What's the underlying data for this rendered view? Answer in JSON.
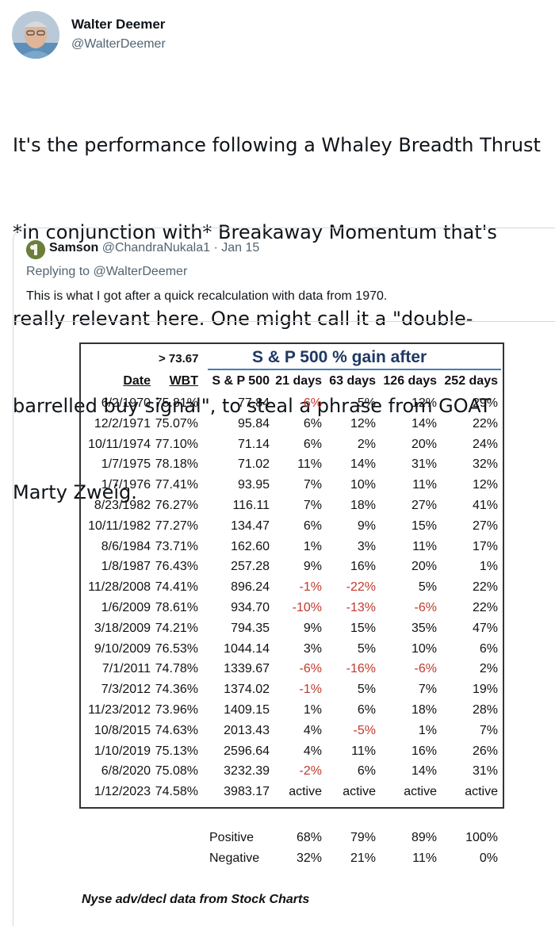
{
  "tweet": {
    "author_name": "Walter Deemer",
    "author_handle": "@WalterDeemer",
    "text_lines": [
      "It's the performance following a Whaley Breadth Thrust",
      "*in conjunction with* Breakaway Momentum that's",
      "really relevant here. One might call it a \"double-",
      "barrelled buy signal\", to steal a phrase from GOAT",
      "Marty Zweig."
    ]
  },
  "quote": {
    "author_name": "Samson",
    "author_handle": "@ChandraNukala1",
    "separator": "·",
    "date": "Jan 15",
    "replying_to": "Replying to @WalterDeemer",
    "text": "This is what I got after a quick recalculation with data from 1970."
  },
  "table": {
    "threshold": "> 73.67",
    "title": "S & P 500  % gain after",
    "headers": [
      "Date",
      "WBT",
      "S & P 500",
      "21 days",
      "63 days",
      "126 days",
      "252 days"
    ],
    "rows": [
      [
        "6/2/1970",
        "75.81%",
        "77.84",
        "-6%",
        "5%",
        "12%",
        "29%"
      ],
      [
        "12/2/1971",
        "75.07%",
        "95.84",
        "6%",
        "12%",
        "14%",
        "22%"
      ],
      [
        "10/11/1974",
        "77.10%",
        "71.14",
        "6%",
        "2%",
        "20%",
        "24%"
      ],
      [
        "1/7/1975",
        "78.18%",
        "71.02",
        "11%",
        "14%",
        "31%",
        "32%"
      ],
      [
        "1/7/1976",
        "77.41%",
        "93.95",
        "7%",
        "10%",
        "11%",
        "12%"
      ],
      [
        "8/23/1982",
        "76.27%",
        "116.11",
        "7%",
        "18%",
        "27%",
        "41%"
      ],
      [
        "10/11/1982",
        "77.27%",
        "134.47",
        "6%",
        "9%",
        "15%",
        "27%"
      ],
      [
        "8/6/1984",
        "73.71%",
        "162.60",
        "1%",
        "3%",
        "11%",
        "17%"
      ],
      [
        "1/8/1987",
        "76.43%",
        "257.28",
        "9%",
        "16%",
        "20%",
        "1%"
      ],
      [
        "11/28/2008",
        "74.41%",
        "896.24",
        "-1%",
        "-22%",
        "5%",
        "22%"
      ],
      [
        "1/6/2009",
        "78.61%",
        "934.70",
        "-10%",
        "-13%",
        "-6%",
        "22%"
      ],
      [
        "3/18/2009",
        "74.21%",
        "794.35",
        "9%",
        "15%",
        "35%",
        "47%"
      ],
      [
        "9/10/2009",
        "76.53%",
        "1044.14",
        "3%",
        "5%",
        "10%",
        "6%"
      ],
      [
        "7/1/2011",
        "74.78%",
        "1339.67",
        "-6%",
        "-16%",
        "-6%",
        "2%"
      ],
      [
        "7/3/2012",
        "74.36%",
        "1374.02",
        "-1%",
        "5%",
        "7%",
        "19%"
      ],
      [
        "11/23/2012",
        "73.96%",
        "1409.15",
        "1%",
        "6%",
        "18%",
        "28%"
      ],
      [
        "10/8/2015",
        "74.63%",
        "2013.43",
        "4%",
        "-5%",
        "1%",
        "7%"
      ],
      [
        "1/10/2019",
        "75.13%",
        "2596.64",
        "4%",
        "11%",
        "16%",
        "26%"
      ],
      [
        "6/8/2020",
        "75.08%",
        "3232.39",
        "-2%",
        "6%",
        "14%",
        "31%"
      ],
      [
        "1/12/2023",
        "74.58%",
        "3983.17",
        "active",
        "active",
        "active",
        "active"
      ]
    ],
    "summary": [
      [
        "Positive",
        "68%",
        "79%",
        "89%",
        "100%"
      ],
      [
        "Negative",
        "32%",
        "21%",
        "11%",
        "0%"
      ]
    ],
    "note": "Nyse adv/decl data from Stock Charts",
    "colors": {
      "negative": "#c0392b",
      "title": "#1f3864",
      "rule": "#4a7ab3"
    }
  }
}
